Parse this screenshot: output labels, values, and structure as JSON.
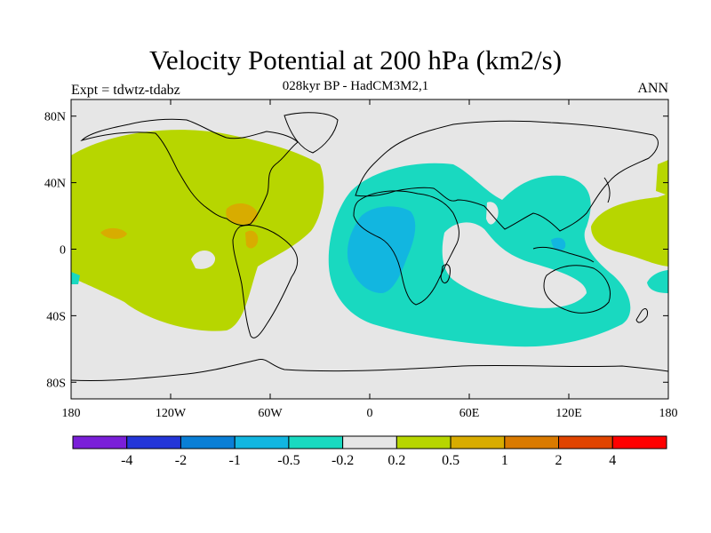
{
  "header": {
    "title": "Velocity Potential at 200 hPa (km2/s)",
    "subtitle": "028kyr BP - HadCM3M2,1",
    "experiment": "Expt = tdwtz-tdabz",
    "season": "ANN"
  },
  "map": {
    "projection": "equirectangular",
    "lon_range": [
      -180,
      180
    ],
    "lat_range": [
      -90,
      90
    ],
    "lon_ticks": [
      "180",
      "120W",
      "60W",
      "0",
      "60E",
      "120E",
      "180"
    ],
    "lat_ticks": [
      "80N",
      "40N",
      "0",
      "40S",
      "80S"
    ],
    "background_color": "#e6e6e6"
  },
  "colorbar": {
    "colors": [
      "#7a1fd8",
      "#2436d8",
      "#0a7fd6",
      "#12b6e0",
      "#19d9c0",
      "#e6e6e6",
      "#b7d600",
      "#d8ac00",
      "#d97a00",
      "#e04400",
      "#ff0000"
    ],
    "labels": [
      "-4",
      "-2",
      "-1",
      "-0.5",
      "-0.2",
      "0.2",
      "0.5",
      "1",
      "2",
      "4"
    ]
  }
}
